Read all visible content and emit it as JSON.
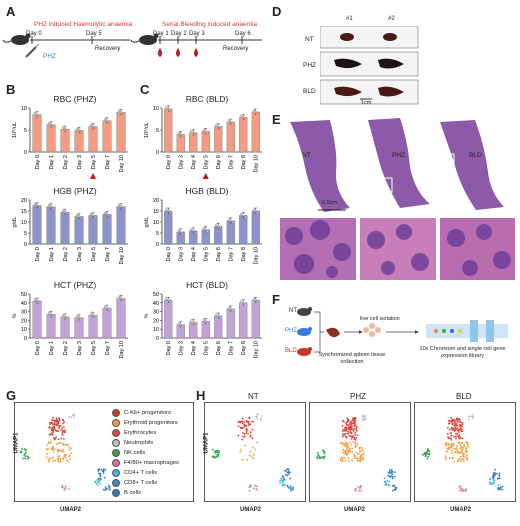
{
  "panels": {
    "A": "A",
    "B": "B",
    "C": "C",
    "D": "D",
    "E": "E",
    "F": "F",
    "G": "G",
    "H": "H"
  },
  "panelA": {
    "left_title": "PHZ induced Haemolytic anaemia",
    "left_days": [
      "Day 0",
      "Day 5"
    ],
    "left_drug": "PHZ",
    "left_recovery": "Recovery",
    "right_title": "Serial Bleeding induced anaemia",
    "right_days": [
      "Day 1",
      "Day 2",
      "Day 3",
      "Day 6"
    ],
    "right_recovery": "Recovery"
  },
  "colors": {
    "phz_title": "#d23c3c",
    "bld_title": "#d23c3c",
    "rbc": "#f29b82",
    "hgb": "#8f93cc",
    "hct": "#c3a3d6",
    "phz_text": "#3a7bd5",
    "drop": "#c0181e"
  },
  "chart_data": [
    {
      "type": "bar",
      "title": "RBC (PHZ)",
      "ylabel": "10⁶/uL",
      "ylim": [
        0,
        10
      ],
      "yticks": [
        0,
        5,
        10
      ],
      "categories": [
        "Day 0",
        "Day 1",
        "Day 2",
        "Day 3",
        "Day 5",
        "Day 7",
        "Day 10"
      ],
      "values": [
        8.5,
        6.2,
        5.2,
        4.9,
        5.8,
        7.1,
        9.0
      ],
      "marker_index": 4
    },
    {
      "type": "bar",
      "title": "HGB (PHZ)",
      "ylabel": "g/dL",
      "ylim": [
        0,
        20
      ],
      "yticks": [
        0,
        5,
        10,
        15,
        20
      ],
      "categories": [
        "Day 0",
        "Day 1",
        "Day 2",
        "Day 3",
        "Day 5",
        "Day 7",
        "Day 10"
      ],
      "values": [
        17.5,
        17.0,
        14.5,
        12.5,
        13.0,
        13.5,
        17.0
      ]
    },
    {
      "type": "bar",
      "title": "HCT (PHZ)",
      "ylabel": "%",
      "ylim": [
        0,
        50
      ],
      "yticks": [
        0,
        10,
        20,
        30,
        40,
        50
      ],
      "categories": [
        "Day 0",
        "Day 1",
        "Day 2",
        "Day 3",
        "Day 5",
        "Day 7",
        "Day 10"
      ],
      "values": [
        42,
        27,
        24,
        23,
        26,
        34,
        45
      ]
    },
    {
      "type": "bar",
      "title": "RBC (BLD)",
      "ylabel": "10⁶/uL",
      "ylim": [
        0,
        10
      ],
      "yticks": [
        0,
        5,
        10
      ],
      "categories": [
        "Day 0",
        "Day 3",
        "Day 4",
        "Day 5",
        "Day 6",
        "Day 7",
        "Day 8",
        "Day 10"
      ],
      "values": [
        9.8,
        4.0,
        4.4,
        4.7,
        5.8,
        6.8,
        7.9,
        9.1
      ],
      "marker_index": 3
    },
    {
      "type": "bar",
      "title": "HGB (BLD)",
      "ylabel": "g/dL",
      "ylim": [
        0,
        20
      ],
      "yticks": [
        0,
        5,
        10,
        15,
        20
      ],
      "categories": [
        "Day 0",
        "Day 3",
        "Day 4",
        "Day 5",
        "Day 6",
        "Day 7",
        "Day 8",
        "Day 10"
      ],
      "values": [
        15.0,
        5.5,
        6.0,
        6.5,
        8.0,
        10.5,
        13.0,
        15.0
      ]
    },
    {
      "type": "bar",
      "title": "HCT (BLD)",
      "ylabel": "%",
      "ylim": [
        0,
        50
      ],
      "yticks": [
        0,
        10,
        20,
        30,
        40,
        50
      ],
      "categories": [
        "Day 0",
        "Day 3",
        "Day 4",
        "Day 5",
        "Day 6",
        "Day 7",
        "Day 8",
        "Day 10"
      ],
      "values": [
        43,
        15,
        18,
        19,
        25,
        33,
        40,
        43
      ]
    }
  ],
  "panelD": {
    "cols": [
      "#1",
      "#2"
    ],
    "rows": [
      "NT",
      "PHZ",
      "BLD"
    ],
    "scale": "1cm"
  },
  "panelE": {
    "labels": [
      "NT",
      "PHZ",
      "BLD"
    ],
    "scale": "0.5cm"
  },
  "panelF": {
    "groups": [
      "NT",
      "PHZ",
      "BLD"
    ],
    "step1": "Synchronized spleen tissue collection",
    "step2": "live cell isolation",
    "step3": "10x Chromium and single cell gene expression library"
  },
  "panelG": {
    "xlabel": "UMAP2",
    "ylabel": "UMAP1",
    "legend": [
      {
        "name": "C-Kit+ progenitors",
        "color": "#c0392b"
      },
      {
        "name": "Erythroid progenitors",
        "color": "#f39c3c"
      },
      {
        "name": "Erythrocytes",
        "color": "#e8473e"
      },
      {
        "name": "Neutrophils",
        "color": "#bdbdbd"
      },
      {
        "name": "NK cells",
        "color": "#2ea34a"
      },
      {
        "name": "F4/80+ macrophages",
        "color": "#e06fa0"
      },
      {
        "name": "CD4+ T cells",
        "color": "#45b6d9"
      },
      {
        "name": "CD8+ T cells",
        "color": "#3a88c8"
      },
      {
        "name": "B cells",
        "color": "#2f78c4"
      }
    ]
  },
  "panelH": {
    "titles": [
      "NT",
      "PHZ",
      "BLD"
    ],
    "xlabel": "UMAP2",
    "ylabel": "UMAP1"
  }
}
